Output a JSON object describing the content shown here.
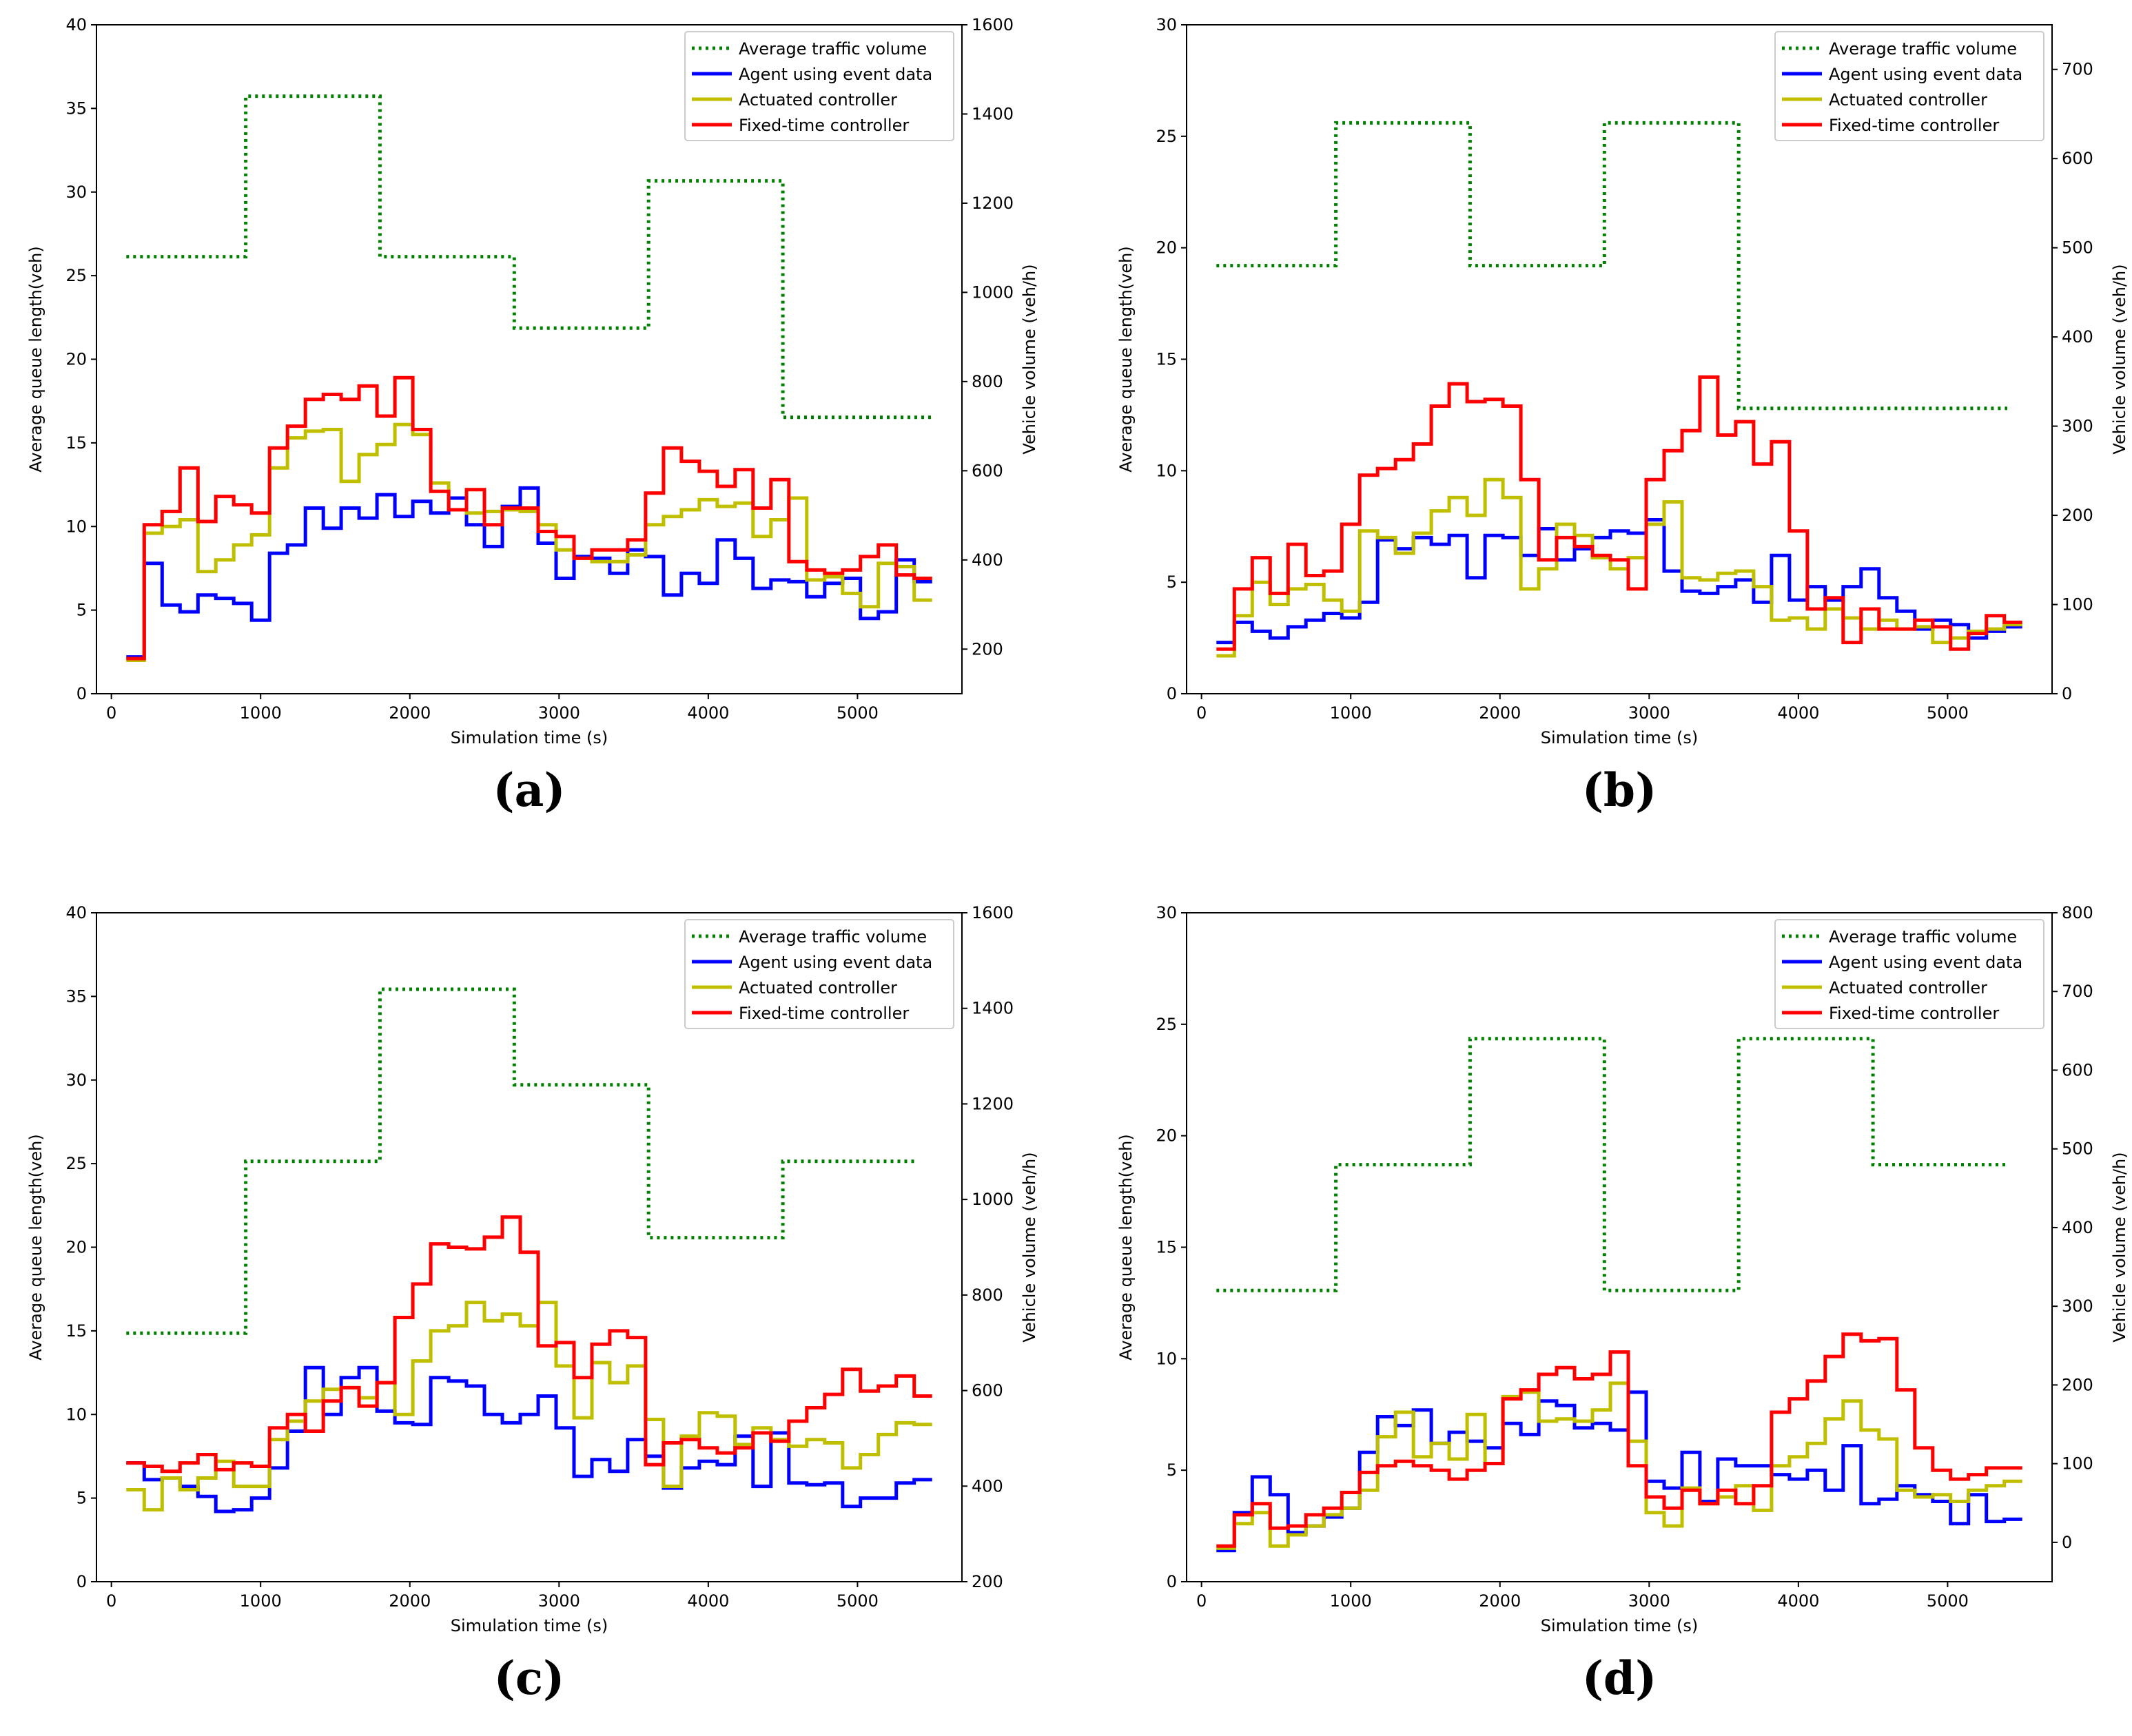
{
  "chart_data": [
    {
      "type": "line",
      "panel_label": "(a)",
      "xlabel": "Simulation time (s)",
      "ylabel": "Average queue length(veh)",
      "ylabel_right": "Vehicle volume (veh/h)",
      "xlim": [
        -100,
        5700
      ],
      "ylim": [
        0,
        40
      ],
      "ylim_right": [
        100,
        1600
      ],
      "xticks": [
        0,
        1000,
        2000,
        3000,
        4000,
        5000
      ],
      "yticks": [
        0,
        5,
        10,
        15,
        20,
        25,
        30,
        35,
        40
      ],
      "yticks_right": [
        200,
        400,
        600,
        800,
        1000,
        1200,
        1400,
        1600
      ],
      "step_x": [
        100,
        220,
        340,
        460,
        580,
        700,
        820,
        940,
        1060,
        1180,
        1300,
        1420,
        1540,
        1660,
        1780,
        1900,
        2020,
        2140,
        2260,
        2380,
        2500,
        2620,
        2740,
        2860,
        2980,
        3100,
        3220,
        3340,
        3460,
        3580,
        3700,
        3820,
        3940,
        4060,
        4180,
        4300,
        4420,
        4540,
        4660,
        4780,
        4900,
        5020,
        5140,
        5260,
        5380,
        5500
      ],
      "legend_position": "upper right",
      "series": [
        {
          "name": "Average traffic volume",
          "axis": "right",
          "color": "#008000",
          "style": "dotted",
          "x": [
            100,
            900,
            900,
            1800,
            1800,
            2700,
            2700,
            3600,
            3600,
            4500,
            4500,
            5500
          ],
          "values": [
            1080,
            1080,
            1440,
            1440,
            1080,
            1080,
            920,
            920,
            1250,
            1250,
            720,
            720
          ]
        },
        {
          "name": "Agent using event data",
          "axis": "left",
          "color": "#0000ff",
          "style": "solid",
          "values": [
            2.2,
            7.8,
            5.3,
            4.9,
            5.9,
            5.7,
            5.4,
            4.4,
            8.4,
            8.9,
            11.1,
            9.9,
            11.1,
            10.5,
            11.9,
            10.6,
            11.5,
            10.8,
            11.7,
            10.1,
            8.8,
            11.2,
            12.3,
            9.0,
            6.9,
            8.2,
            8.1,
            7.2,
            8.6,
            8.2,
            5.9,
            7.2,
            6.6,
            9.2,
            8.1,
            6.3,
            6.8,
            6.7,
            5.8,
            6.6,
            6.9,
            4.5,
            4.9,
            8.0,
            6.7
          ]
        },
        {
          "name": "Actuated controller",
          "axis": "left",
          "color": "#bfbf00",
          "style": "solid",
          "values": [
            2.0,
            9.6,
            10.0,
            10.4,
            7.3,
            8.0,
            8.9,
            9.5,
            13.5,
            15.3,
            15.7,
            15.8,
            12.7,
            14.3,
            14.9,
            16.1,
            15.5,
            12.6,
            11.0,
            10.8,
            10.9,
            11.0,
            10.9,
            10.1,
            8.6,
            8.1,
            7.9,
            7.9,
            8.3,
            10.1,
            10.6,
            11.0,
            11.6,
            11.2,
            11.4,
            9.4,
            10.4,
            11.7,
            6.8,
            7.0,
            6.0,
            5.2,
            7.8,
            7.6,
            5.6
          ]
        },
        {
          "name": "Fixed-time controller",
          "axis": "left",
          "color": "#ff0000",
          "style": "solid",
          "values": [
            2.1,
            10.1,
            10.9,
            13.5,
            10.3,
            11.8,
            11.3,
            10.8,
            14.7,
            16.0,
            17.6,
            17.9,
            17.6,
            18.4,
            16.6,
            18.9,
            15.8,
            12.1,
            11.0,
            12.2,
            10.1,
            11.1,
            11.1,
            9.7,
            9.4,
            8.1,
            8.6,
            8.6,
            9.2,
            12.0,
            14.7,
            13.9,
            13.3,
            12.4,
            13.4,
            11.1,
            12.8,
            7.9,
            7.4,
            7.2,
            7.4,
            8.2,
            8.9,
            7.1,
            6.9
          ]
        }
      ]
    },
    {
      "type": "line",
      "panel_label": "(b)",
      "xlabel": "Simulation time (s)",
      "ylabel": "Average queue length(veh)",
      "ylabel_right": "Vehicle volume (veh/h)",
      "xlim": [
        -100,
        5700
      ],
      "ylim": [
        0,
        30
      ],
      "ylim_right": [
        0,
        750
      ],
      "xticks": [
        0,
        1000,
        2000,
        3000,
        4000,
        5000
      ],
      "yticks": [
        0,
        5,
        10,
        15,
        20,
        25,
        30
      ],
      "yticks_right": [
        0,
        100,
        200,
        300,
        400,
        500,
        600,
        700
      ],
      "step_x": [
        100,
        220,
        340,
        460,
        580,
        700,
        820,
        940,
        1060,
        1180,
        1300,
        1420,
        1540,
        1660,
        1780,
        1900,
        2020,
        2140,
        2260,
        2380,
        2500,
        2620,
        2740,
        2860,
        2980,
        3100,
        3220,
        3340,
        3460,
        3580,
        3700,
        3820,
        3940,
        4060,
        4180,
        4300,
        4420,
        4540,
        4660,
        4780,
        4900,
        5020,
        5140,
        5260,
        5380,
        5500
      ],
      "legend_position": "upper right",
      "series": [
        {
          "name": "Average traffic volume",
          "axis": "right",
          "color": "#008000",
          "style": "dotted",
          "x": [
            100,
            900,
            900,
            1800,
            1800,
            2700,
            2700,
            3600,
            3600,
            5400
          ],
          "values": [
            480,
            480,
            640,
            640,
            480,
            480,
            640,
            640,
            320,
            320
          ]
        },
        {
          "name": "Agent using event data",
          "axis": "left",
          "color": "#0000ff",
          "style": "solid",
          "values": [
            2.3,
            3.2,
            2.8,
            2.5,
            3.0,
            3.3,
            3.6,
            3.4,
            4.1,
            6.9,
            6.5,
            7.0,
            6.7,
            7.1,
            5.2,
            7.1,
            7.0,
            6.2,
            7.4,
            6.0,
            6.5,
            7.0,
            7.3,
            7.2,
            7.8,
            5.5,
            4.6,
            4.5,
            4.8,
            5.1,
            4.1,
            6.2,
            4.2,
            4.8,
            4.2,
            4.8,
            5.6,
            4.3,
            3.7,
            2.9,
            3.3,
            3.1,
            2.5,
            2.8,
            3.0
          ]
        },
        {
          "name": "Actuated controller",
          "axis": "left",
          "color": "#bfbf00",
          "style": "solid",
          "values": [
            1.7,
            3.5,
            5.0,
            4.0,
            4.7,
            4.9,
            4.2,
            3.7,
            7.3,
            7.0,
            6.3,
            7.2,
            8.2,
            8.8,
            8.0,
            9.6,
            8.8,
            4.7,
            5.6,
            7.6,
            7.1,
            6.1,
            5.6,
            6.1,
            7.6,
            8.6,
            5.2,
            5.1,
            5.4,
            5.5,
            4.8,
            3.3,
            3.4,
            2.9,
            3.8,
            3.4,
            2.9,
            3.3,
            2.9,
            3.0,
            2.3,
            2.5,
            2.8,
            2.9,
            3.1
          ]
        },
        {
          "name": "Fixed-time controller",
          "axis": "left",
          "color": "#ff0000",
          "style": "solid",
          "values": [
            2.0,
            4.7,
            6.1,
            4.5,
            6.7,
            5.3,
            5.5,
            7.6,
            9.8,
            10.1,
            10.5,
            11.2,
            12.9,
            13.9,
            13.1,
            13.2,
            12.9,
            9.6,
            6.0,
            7.0,
            6.6,
            6.2,
            6.0,
            4.7,
            9.6,
            10.9,
            11.8,
            14.2,
            11.6,
            12.2,
            10.3,
            11.3,
            7.3,
            3.8,
            4.3,
            2.3,
            3.8,
            2.9,
            2.9,
            3.3,
            3.0,
            2.0,
            2.7,
            3.5,
            3.2
          ]
        }
      ]
    },
    {
      "type": "line",
      "panel_label": "(c)",
      "xlabel": "Simulation time (s)",
      "ylabel": "Average queue length(veh)",
      "ylabel_right": "Vehicle volume (veh/h)",
      "xlim": [
        -100,
        5700
      ],
      "ylim": [
        0,
        40
      ],
      "ylim_right": [
        200,
        1600
      ],
      "xticks": [
        0,
        1000,
        2000,
        3000,
        4000,
        5000
      ],
      "yticks": [
        0,
        5,
        10,
        15,
        20,
        25,
        30,
        35,
        40
      ],
      "yticks_right": [
        200,
        400,
        600,
        800,
        1000,
        1200,
        1400,
        1600
      ],
      "step_x": [
        100,
        220,
        340,
        460,
        580,
        700,
        820,
        940,
        1060,
        1180,
        1300,
        1420,
        1540,
        1660,
        1780,
        1900,
        2020,
        2140,
        2260,
        2380,
        2500,
        2620,
        2740,
        2860,
        2980,
        3100,
        3220,
        3340,
        3460,
        3580,
        3700,
        3820,
        3940,
        4060,
        4180,
        4300,
        4420,
        4540,
        4660,
        4780,
        4900,
        5020,
        5140,
        5260,
        5380,
        5500
      ],
      "legend_position": "upper right",
      "series": [
        {
          "name": "Average traffic volume",
          "axis": "right",
          "color": "#008000",
          "style": "dotted",
          "x": [
            100,
            900,
            900,
            1800,
            1800,
            2700,
            2700,
            3600,
            3600,
            4500,
            4500,
            5400
          ],
          "values": [
            720,
            720,
            1080,
            1080,
            1440,
            1440,
            1240,
            1240,
            920,
            920,
            1080,
            1080
          ]
        },
        {
          "name": "Agent using event data",
          "axis": "left",
          "color": "#0000ff",
          "style": "solid",
          "values": [
            7.1,
            6.1,
            6.2,
            5.7,
            5.1,
            4.2,
            4.3,
            5.0,
            6.8,
            9.0,
            12.8,
            10.0,
            12.2,
            12.8,
            10.2,
            9.5,
            9.4,
            12.2,
            12.0,
            11.7,
            10.0,
            9.5,
            10.0,
            11.1,
            9.2,
            6.3,
            7.3,
            6.6,
            8.5,
            7.5,
            5.6,
            6.8,
            7.2,
            7.0,
            8.7,
            5.7,
            8.9,
            5.9,
            5.8,
            5.9,
            4.5,
            5.0,
            5.0,
            5.9,
            6.1
          ]
        },
        {
          "name": "Actuated controller",
          "axis": "left",
          "color": "#bfbf00",
          "style": "solid",
          "values": [
            5.5,
            4.3,
            6.2,
            5.5,
            6.2,
            7.2,
            5.7,
            5.7,
            8.5,
            9.6,
            10.8,
            11.5,
            11.6,
            11.0,
            11.9,
            10.0,
            13.2,
            15.0,
            15.3,
            16.7,
            15.6,
            16.0,
            15.3,
            16.7,
            12.9,
            9.8,
            13.1,
            11.9,
            12.9,
            9.7,
            5.7,
            8.7,
            10.1,
            9.9,
            8.2,
            9.2,
            8.5,
            8.1,
            8.5,
            8.3,
            6.8,
            7.6,
            8.8,
            9.5,
            9.4
          ]
        },
        {
          "name": "Fixed-time controller",
          "axis": "left",
          "color": "#ff0000",
          "style": "solid",
          "values": [
            7.1,
            6.9,
            6.6,
            7.1,
            7.6,
            6.7,
            7.1,
            6.9,
            9.2,
            10.0,
            9.0,
            10.8,
            11.6,
            10.5,
            11.9,
            15.8,
            17.8,
            20.2,
            20.0,
            19.9,
            20.6,
            21.8,
            19.7,
            14.1,
            14.3,
            12.2,
            14.2,
            15.0,
            14.6,
            7.0,
            8.3,
            8.5,
            8.0,
            7.7,
            8.0,
            8.9,
            8.4,
            9.6,
            10.4,
            11.2,
            12.7,
            11.4,
            11.7,
            12.3,
            11.1
          ]
        }
      ]
    },
    {
      "type": "line",
      "panel_label": "(d)",
      "xlabel": "Simulation time (s)",
      "ylabel": "Average queue length(veh)",
      "ylabel_right": "Vehicle volume (veh/h)",
      "xlim": [
        -100,
        5700
      ],
      "ylim": [
        0,
        30
      ],
      "ylim_right": [
        -50,
        800
      ],
      "xticks": [
        0,
        1000,
        2000,
        3000,
        4000,
        5000
      ],
      "yticks": [
        0,
        5,
        10,
        15,
        20,
        25,
        30
      ],
      "yticks_right": [
        0,
        100,
        200,
        300,
        400,
        500,
        600,
        700,
        800
      ],
      "step_x": [
        100,
        220,
        340,
        460,
        580,
        700,
        820,
        940,
        1060,
        1180,
        1300,
        1420,
        1540,
        1660,
        1780,
        1900,
        2020,
        2140,
        2260,
        2380,
        2500,
        2620,
        2740,
        2860,
        2980,
        3100,
        3220,
        3340,
        3460,
        3580,
        3700,
        3820,
        3940,
        4060,
        4180,
        4300,
        4420,
        4540,
        4660,
        4780,
        4900,
        5020,
        5140,
        5260,
        5380,
        5500
      ],
      "legend_position": "upper right",
      "series": [
        {
          "name": "Average traffic volume",
          "axis": "right",
          "color": "#008000",
          "style": "dotted",
          "x": [
            100,
            900,
            900,
            1800,
            1800,
            2700,
            2700,
            3600,
            3600,
            4500,
            4500,
            5400
          ],
          "values": [
            320,
            320,
            480,
            480,
            640,
            640,
            320,
            320,
            640,
            640,
            480,
            480
          ]
        },
        {
          "name": "Agent using event data",
          "axis": "left",
          "color": "#0000ff",
          "style": "solid",
          "values": [
            1.4,
            3.1,
            4.7,
            3.9,
            2.2,
            2.5,
            2.9,
            3.3,
            5.8,
            7.4,
            7.0,
            7.7,
            6.2,
            6.7,
            6.3,
            6.0,
            7.1,
            6.6,
            8.1,
            7.9,
            6.9,
            7.1,
            6.8,
            8.5,
            4.5,
            4.2,
            5.8,
            3.6,
            5.5,
            5.2,
            5.2,
            4.8,
            4.6,
            5.0,
            4.1,
            6.1,
            3.5,
            3.7,
            4.3,
            3.9,
            3.6,
            2.6,
            3.9,
            2.7,
            2.8
          ]
        },
        {
          "name": "Actuated controller",
          "axis": "left",
          "color": "#bfbf00",
          "style": "solid",
          "values": [
            1.5,
            2.6,
            3.1,
            1.6,
            2.1,
            2.5,
            3.0,
            3.3,
            4.1,
            6.5,
            7.6,
            5.6,
            6.2,
            5.5,
            7.5,
            5.3,
            8.3,
            8.5,
            7.2,
            7.3,
            7.2,
            7.7,
            8.9,
            6.3,
            3.1,
            2.5,
            4.2,
            3.5,
            3.8,
            4.3,
            3.2,
            5.2,
            5.6,
            6.2,
            7.3,
            8.1,
            6.8,
            6.4,
            4.1,
            3.8,
            3.9,
            3.6,
            4.1,
            4.3,
            4.5
          ]
        },
        {
          "name": "Fixed-time controller",
          "axis": "left",
          "color": "#ff0000",
          "style": "solid",
          "values": [
            1.6,
            3.0,
            3.5,
            2.4,
            2.5,
            3.0,
            3.3,
            4.0,
            4.9,
            5.2,
            5.4,
            5.2,
            5.0,
            4.6,
            5.0,
            5.3,
            8.2,
            8.6,
            9.3,
            9.6,
            9.1,
            9.3,
            10.3,
            5.2,
            3.8,
            3.3,
            4.1,
            3.5,
            4.1,
            3.5,
            4.3,
            7.6,
            8.2,
            9.0,
            10.1,
            11.1,
            10.8,
            10.9,
            8.6,
            6.0,
            5.0,
            4.6,
            4.8,
            5.1,
            5.1
          ]
        }
      ]
    }
  ]
}
